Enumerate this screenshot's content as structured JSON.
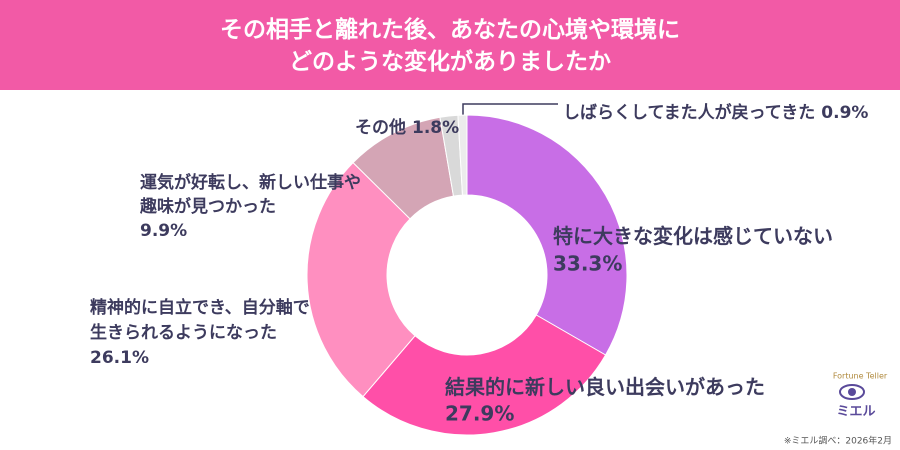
{
  "chart_data": {
    "type": "donut",
    "title": "その相手と離れた後、あなたの心境や環境に\nどのような変化がありましたか",
    "categories": [
      "特に大きな変化は感じていない",
      "結果的に新しい良い出会いがあった",
      "精神的に自立でき、自分軸で\n生きられるようになった",
      "運気が好転し、新しい仕事や\n趣味が見つかった",
      "その他",
      "しばらくしてまた人が戻ってきた"
    ],
    "values": [
      33.3,
      27.9,
      26.1,
      9.9,
      1.8,
      0.9
    ],
    "value_labels": [
      "33.3%",
      "27.9%",
      "26.1%",
      "9.9%",
      "1.8%",
      "0.9%"
    ],
    "colors": [
      "#c86ee6",
      "#ff4fa8",
      "#ff8fc0",
      "#d4a5b5",
      "#d9d9d9",
      "#ececec"
    ],
    "footnote": "※ミエル調べ：2026年2月",
    "logo": {
      "tagline": "Fortune Teller",
      "name": "ミエル"
    }
  }
}
